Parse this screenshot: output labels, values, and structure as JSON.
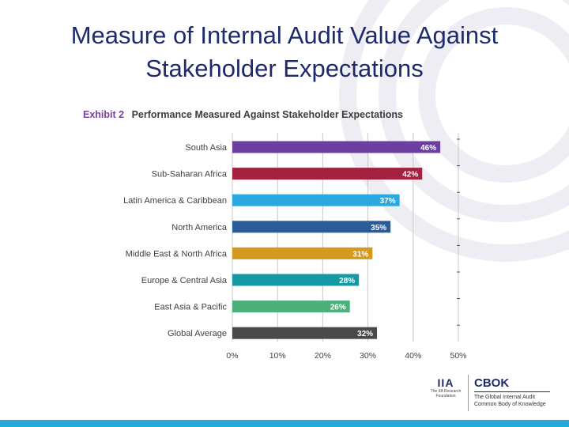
{
  "slide": {
    "title_line1": "Measure of Internal Audit Value Against",
    "title_line2": "Stakeholder Expectations"
  },
  "exhibit": {
    "number": "Exhibit 2",
    "title": "Performance Measured Against Stakeholder Expectations"
  },
  "chart_data": {
    "type": "bar",
    "orientation": "horizontal",
    "title": "Performance Measured Against Stakeholder Expectations",
    "categories": [
      "South Asia",
      "Sub-Saharan Africa",
      "Latin America & Caribbean",
      "North America",
      "Middle East & North Africa",
      "Europe & Central Asia",
      "East Asia & Pacific",
      "Global Average"
    ],
    "values": [
      46,
      42,
      37,
      35,
      31,
      28,
      26,
      32
    ],
    "value_labels": [
      "46%",
      "42%",
      "37%",
      "35%",
      "31%",
      "28%",
      "26%",
      "32%"
    ],
    "colors": [
      "#6b3fa0",
      "#a3213f",
      "#2aa9e0",
      "#2b5c9a",
      "#d49a1f",
      "#159aa5",
      "#4cb07a",
      "#4a4a4a"
    ],
    "xlim": [
      0,
      50
    ],
    "xticks": [
      "0%",
      "10%",
      "20%",
      "30%",
      "40%",
      "50%"
    ],
    "grid": true,
    "xlabel": "",
    "ylabel": ""
  },
  "footer": {
    "iia_mark": "IIA",
    "iia_caption": "The IIA Research Foundation",
    "cbok_title": "CBOK",
    "cbok_sub1": "The Global Internal Audit",
    "cbok_sub2": "Common Body of Knowledge"
  }
}
